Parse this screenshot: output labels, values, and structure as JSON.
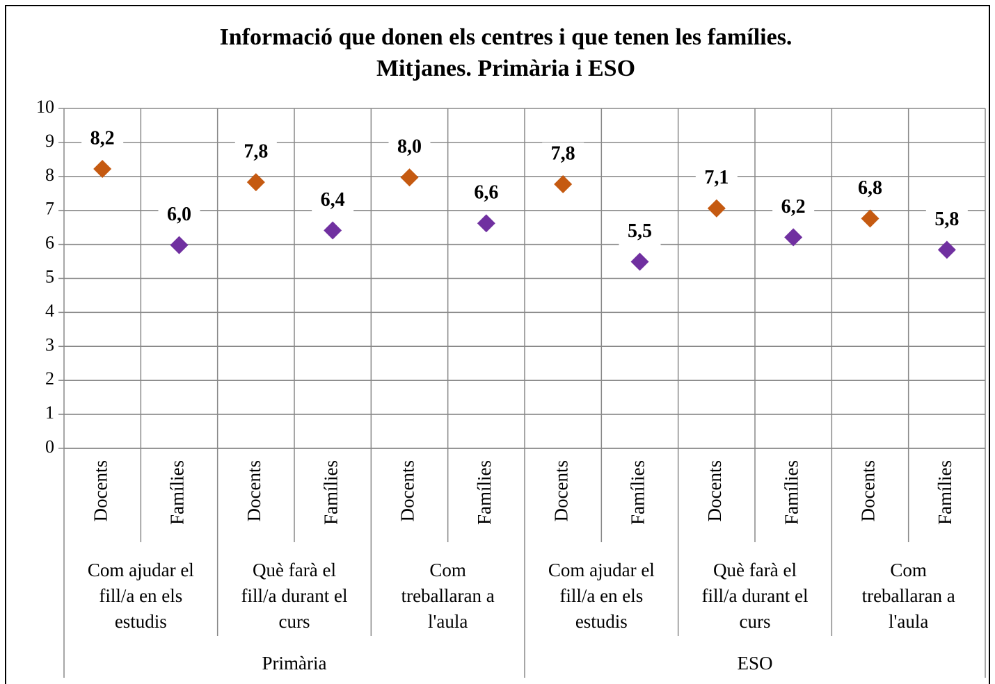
{
  "chart_data": {
    "type": "scatter",
    "title": [
      "Informació que donen els centres i que tenen les famílies.",
      "Mitjanes. Primària i ESO"
    ],
    "categories": [
      "Docents",
      "Famílies",
      "Docents",
      "Famílies",
      "Docents",
      "Famílies",
      "Docents",
      "Famílies",
      "Docents",
      "Famílies",
      "Docents",
      "Famílies"
    ],
    "groups": [
      [
        "Com ajudar el",
        "fill/a en els",
        "estudis"
      ],
      [
        "Què farà el",
        "fill/a durant el",
        "curs"
      ],
      [
        "Com",
        "treballaran a",
        "l'aula"
      ],
      [
        "Com ajudar el",
        "fill/a en els",
        "estudis"
      ],
      [
        "Què farà el",
        "fill/a durant el",
        "curs"
      ],
      [
        "Com",
        "treballaran a",
        "l'aula"
      ]
    ],
    "supergroups": [
      "Primària",
      "ESO"
    ],
    "values": [
      8.22,
      5.98,
      7.83,
      6.41,
      7.97,
      6.62,
      7.77,
      5.49,
      7.06,
      6.21,
      6.76,
      5.84
    ],
    "value_labels": [
      "8,2",
      "6,0",
      "7,8",
      "6,4",
      "8,0",
      "6,6",
      "7,8",
      "5,5",
      "7,1",
      "6,2",
      "6,8",
      "5,8"
    ],
    "colors": [
      "#c55a11",
      "#7030a0",
      "#c55a11",
      "#7030a0",
      "#c55a11",
      "#7030a0",
      "#c55a11",
      "#7030a0",
      "#c55a11",
      "#7030a0",
      "#c55a11",
      "#7030a0"
    ],
    "ylim": [
      0,
      10
    ],
    "yticks": [
      0,
      1,
      2,
      3,
      4,
      5,
      6,
      7,
      8,
      9,
      10
    ],
    "grid": true
  }
}
